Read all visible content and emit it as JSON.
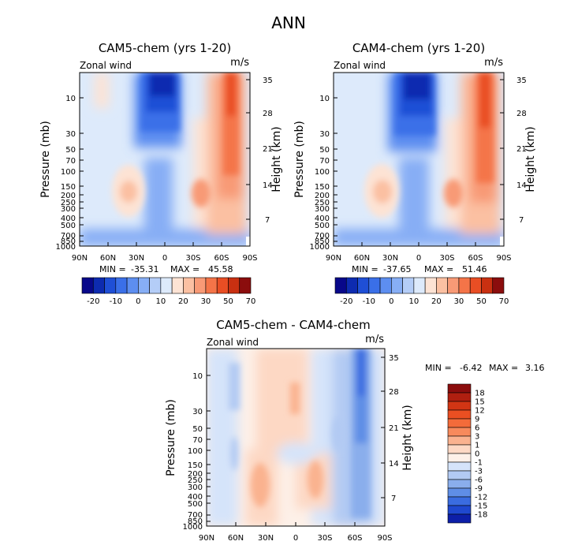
{
  "figure": {
    "title": "ANN"
  },
  "chart_data": [
    {
      "type": "heatmap",
      "title": "CAM5-chem (yrs 1-20)",
      "variable_label": "Zonal wind",
      "units_label": "m/s",
      "xlabel": "",
      "ylabel": "Pressure (mb)",
      "right_ylabel": "Height (km)",
      "x_ticks": [
        "90N",
        "60N",
        "30N",
        "0",
        "30S",
        "60S",
        "90S"
      ],
      "y_ticks": [
        "10",
        "30",
        "50",
        "70",
        "100",
        "150",
        "200",
        "250",
        "300",
        "400",
        "500",
        "700",
        "850",
        "1000"
      ],
      "height_ticks": [
        "35",
        "28",
        "21",
        "14",
        "7"
      ],
      "stats": {
        "min_label": "MIN =",
        "min": "-35.31",
        "max_label": "MAX =",
        "max": "45.58"
      },
      "colorbar": {
        "orientation": "horizontal",
        "labels": [
          "-20",
          "-10",
          "0",
          "10",
          "20",
          "30",
          "50",
          "70"
        ],
        "colors": [
          "#08088a",
          "#0d2bb0",
          "#1f4fd6",
          "#3a6fe8",
          "#5d8ef0",
          "#87aef5",
          "#b4cdf7",
          "#ddeafb",
          "#fde3d4",
          "#fbc0a2",
          "#f89a76",
          "#f47448",
          "#e94e24",
          "#c93011",
          "#8b0d0d"
        ]
      },
      "features": [
        {
          "lat": 0,
          "p": 10,
          "u": -35,
          "desc": "stratospheric easterlies"
        },
        {
          "lat": 40,
          "p": 200,
          "u": 20,
          "desc": "NH subtropical jet"
        },
        {
          "lat": -40,
          "p": 200,
          "u": 30,
          "desc": "SH subtropical jet"
        },
        {
          "lat": -60,
          "p": 10,
          "u": 45,
          "desc": "SH polar night jet"
        }
      ]
    },
    {
      "type": "heatmap",
      "title": "CAM4-chem (yrs 1-20)",
      "variable_label": "Zonal wind",
      "units_label": "m/s",
      "xlabel": "",
      "ylabel": "Pressure (mb)",
      "right_ylabel": "Height (km)",
      "x_ticks": [
        "90N",
        "60N",
        "30N",
        "0",
        "30S",
        "60S",
        "90S"
      ],
      "y_ticks": [
        "10",
        "30",
        "50",
        "70",
        "100",
        "150",
        "200",
        "250",
        "300",
        "400",
        "500",
        "700",
        "850",
        "1000"
      ],
      "height_ticks": [
        "35",
        "28",
        "21",
        "14",
        "7"
      ],
      "stats": {
        "min_label": "MIN =",
        "min": "-37.65",
        "max_label": "MAX =",
        "max": "51.46"
      },
      "colorbar": {
        "orientation": "horizontal",
        "labels": [
          "-20",
          "-10",
          "0",
          "10",
          "20",
          "30",
          "50",
          "70"
        ],
        "colors": [
          "#08088a",
          "#0d2bb0",
          "#1f4fd6",
          "#3a6fe8",
          "#5d8ef0",
          "#87aef5",
          "#b4cdf7",
          "#ddeafb",
          "#fde3d4",
          "#fbc0a2",
          "#f89a76",
          "#f47448",
          "#e94e24",
          "#c93011",
          "#8b0d0d"
        ]
      },
      "features": [
        {
          "lat": 0,
          "p": 10,
          "u": -37,
          "desc": "stratospheric easterlies"
        },
        {
          "lat": 40,
          "p": 200,
          "u": 20,
          "desc": "NH subtropical jet"
        },
        {
          "lat": -40,
          "p": 200,
          "u": 30,
          "desc": "SH subtropical jet"
        },
        {
          "lat": -60,
          "p": 10,
          "u": 51,
          "desc": "SH polar night jet"
        }
      ]
    },
    {
      "type": "heatmap",
      "title": "CAM5-chem - CAM4-chem",
      "variable_label": "Zonal wind",
      "units_label": "m/s",
      "xlabel": "",
      "ylabel": "Pressure (mb)",
      "right_ylabel": "Height (km)",
      "x_ticks": [
        "90N",
        "60N",
        "30N",
        "0",
        "30S",
        "60S",
        "90S"
      ],
      "y_ticks": [
        "10",
        "30",
        "50",
        "70",
        "100",
        "150",
        "200",
        "250",
        "300",
        "400",
        "500",
        "700",
        "850",
        "1000"
      ],
      "height_ticks": [
        "35",
        "28",
        "21",
        "14",
        "7"
      ],
      "stats": {
        "min_label": "MIN =",
        "min": "-6.42",
        "max_label": "MAX =",
        "max": "3.16"
      },
      "colorbar": {
        "orientation": "vertical",
        "labels": [
          "18",
          "15",
          "12",
          "9",
          "6",
          "3",
          "1",
          "0",
          "-1",
          "-3",
          "-6",
          "-9",
          "-12",
          "-15",
          "-18"
        ],
        "colors": [
          "#8b0d0d",
          "#b01f10",
          "#d23514",
          "#ea4f22",
          "#f36b3a",
          "#f78a5c",
          "#fab28f",
          "#fdd8c4",
          "#fdf0e8",
          "#d5e4fa",
          "#b2caf3",
          "#8aaeec",
          "#5f8ee6",
          "#3a6ce0",
          "#1f48cf",
          "#0d1fa8"
        ]
      },
      "features": [
        {
          "lat": -60,
          "p": 10,
          "u": -6,
          "desc": "SH high-latitude negative difference"
        },
        {
          "lat": 0,
          "p": 30,
          "u": 2,
          "desc": "equatorial stratosphere positive"
        },
        {
          "lat": -20,
          "p": 300,
          "u": 2,
          "desc": "SH subtropics positive"
        },
        {
          "lat": 30,
          "p": 300,
          "u": 2,
          "desc": "NH subtropics positive"
        }
      ]
    }
  ]
}
